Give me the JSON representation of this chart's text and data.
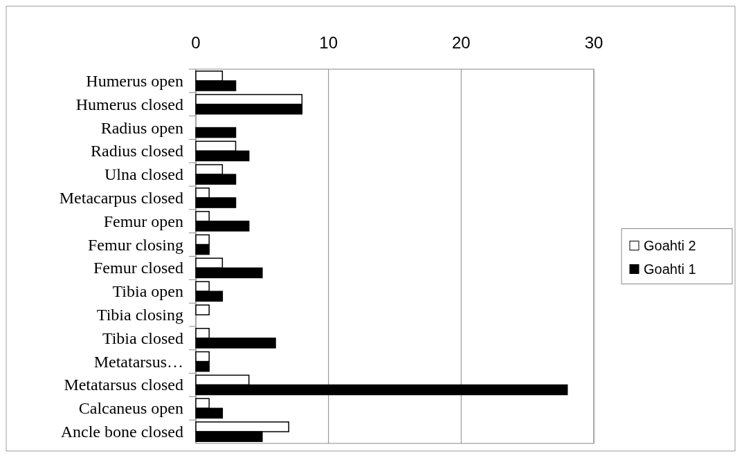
{
  "chart_data": {
    "type": "bar",
    "orientation": "horizontal",
    "categories": [
      "Humerus open",
      "Humerus closed",
      "Radius open",
      "Radius closed",
      "Ulna closed",
      "Metacarpus closed",
      "Femur open",
      "Femur closing",
      "Femur closed",
      "Tibia open",
      "Tibia closing",
      "Tibia closed",
      "Metatarsus…",
      "Metatarsus closed",
      "Calcaneus open",
      "Ancle bone closed"
    ],
    "series": [
      {
        "name": "Goahti 2",
        "color": "#ffffff",
        "values": [
          2,
          8,
          0,
          3,
          2,
          1,
          1,
          1,
          2,
          1,
          1,
          1,
          1,
          4,
          1,
          7
        ]
      },
      {
        "name": "Goahti 1",
        "color": "#000000",
        "values": [
          3,
          8,
          3,
          4,
          3,
          3,
          4,
          1,
          5,
          2,
          0,
          6,
          1,
          28,
          2,
          5
        ]
      }
    ],
    "xlim": [
      0,
      30
    ],
    "xticks": [
      0,
      10,
      20,
      30
    ],
    "grid": "x",
    "legend": "right"
  }
}
